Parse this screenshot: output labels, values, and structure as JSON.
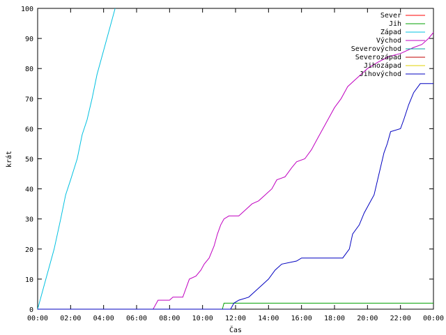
{
  "chart_data": {
    "type": "line",
    "title": "",
    "xlabel": "Čas",
    "ylabel": "krát",
    "xlim": [
      0,
      24
    ],
    "ylim": [
      0,
      100
    ],
    "x_ticks": [
      {
        "value": 0,
        "label": "00:00"
      },
      {
        "value": 2,
        "label": "02:00"
      },
      {
        "value": 4,
        "label": "04:00"
      },
      {
        "value": 6,
        "label": "06:00"
      },
      {
        "value": 8,
        "label": "08:00"
      },
      {
        "value": 10,
        "label": "10:00"
      },
      {
        "value": 12,
        "label": "12:00"
      },
      {
        "value": 14,
        "label": "14:00"
      },
      {
        "value": 16,
        "label": "16:00"
      },
      {
        "value": 18,
        "label": "18:00"
      },
      {
        "value": 20,
        "label": "20:00"
      },
      {
        "value": 22,
        "label": "22:00"
      },
      {
        "value": 24,
        "label": "00:00"
      }
    ],
    "y_ticks": [
      0,
      10,
      20,
      30,
      40,
      50,
      60,
      70,
      80,
      90,
      100
    ],
    "grid": false,
    "legend_position": "top-right",
    "series": [
      {
        "name": "Sever",
        "color": "#ff0000",
        "points": []
      },
      {
        "name": "Jih",
        "color": "#00a000",
        "points": [
          [
            0,
            0
          ],
          [
            11.2,
            0
          ],
          [
            11.3,
            2
          ],
          [
            24,
            2
          ]
        ]
      },
      {
        "name": "Západ",
        "color": "#00c0e0",
        "points": [
          [
            0,
            0
          ],
          [
            0.5,
            10
          ],
          [
            1.0,
            20
          ],
          [
            1.4,
            30
          ],
          [
            1.7,
            38
          ],
          [
            2.0,
            43
          ],
          [
            2.4,
            50
          ],
          [
            2.7,
            58
          ],
          [
            3.0,
            63
          ],
          [
            3.3,
            70
          ],
          [
            3.6,
            78
          ],
          [
            3.9,
            84
          ],
          [
            4.2,
            90
          ],
          [
            4.5,
            96
          ],
          [
            4.7,
            100
          ]
        ]
      },
      {
        "name": "Východ",
        "color": "#c000c0",
        "points": [
          [
            0,
            0
          ],
          [
            7.0,
            0
          ],
          [
            7.3,
            3
          ],
          [
            8.0,
            3
          ],
          [
            8.2,
            4
          ],
          [
            8.8,
            4
          ],
          [
            9.0,
            7
          ],
          [
            9.2,
            10
          ],
          [
            9.6,
            11
          ],
          [
            9.9,
            13
          ],
          [
            10.1,
            15
          ],
          [
            10.4,
            17
          ],
          [
            10.7,
            21
          ],
          [
            10.9,
            25
          ],
          [
            11.1,
            28
          ],
          [
            11.3,
            30
          ],
          [
            11.6,
            31
          ],
          [
            12.2,
            31
          ],
          [
            12.6,
            33
          ],
          [
            13.0,
            35
          ],
          [
            13.4,
            36
          ],
          [
            13.8,
            38
          ],
          [
            14.2,
            40
          ],
          [
            14.5,
            43
          ],
          [
            15.0,
            44
          ],
          [
            15.4,
            47
          ],
          [
            15.7,
            49
          ],
          [
            16.2,
            50
          ],
          [
            16.6,
            53
          ],
          [
            17.0,
            57
          ],
          [
            17.3,
            60
          ],
          [
            17.6,
            63
          ],
          [
            18.0,
            67
          ],
          [
            18.4,
            70
          ],
          [
            18.8,
            74
          ],
          [
            19.2,
            76
          ],
          [
            19.6,
            78
          ],
          [
            20.0,
            80
          ],
          [
            20.6,
            82
          ],
          [
            21.3,
            84
          ],
          [
            22.0,
            85
          ],
          [
            22.8,
            87
          ],
          [
            23.3,
            88
          ],
          [
            23.7,
            90
          ],
          [
            24,
            92
          ]
        ]
      },
      {
        "name": "Severovýchod",
        "color": "#00a0a0",
        "points": []
      },
      {
        "name": "Severozápad",
        "color": "#c00000",
        "points": []
      },
      {
        "name": "Jihozápad",
        "color": "#e0d000",
        "points": []
      },
      {
        "name": "Jihovýchod",
        "color": "#0000c0",
        "points": [
          [
            0,
            0
          ],
          [
            11.7,
            0
          ],
          [
            11.9,
            2
          ],
          [
            12.2,
            3
          ],
          [
            12.8,
            4
          ],
          [
            13.2,
            6
          ],
          [
            13.6,
            8
          ],
          [
            14.0,
            10
          ],
          [
            14.4,
            13
          ],
          [
            14.8,
            15
          ],
          [
            15.7,
            16
          ],
          [
            16.0,
            17
          ],
          [
            18.5,
            17
          ],
          [
            18.9,
            20
          ],
          [
            19.1,
            25
          ],
          [
            19.5,
            28
          ],
          [
            19.8,
            32
          ],
          [
            20.1,
            35
          ],
          [
            20.4,
            38
          ],
          [
            20.7,
            45
          ],
          [
            21.0,
            52
          ],
          [
            21.2,
            55
          ],
          [
            21.4,
            59
          ],
          [
            22.0,
            60
          ],
          [
            22.2,
            63
          ],
          [
            22.5,
            68
          ],
          [
            22.8,
            72
          ],
          [
            23.2,
            75
          ],
          [
            24,
            75
          ]
        ]
      }
    ]
  }
}
